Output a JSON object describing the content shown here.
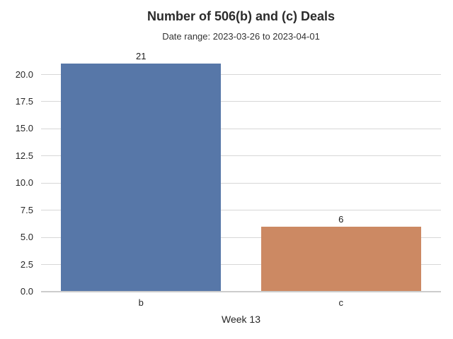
{
  "chart_data": {
    "type": "bar",
    "title": "Number of 506(b) and (c) Deals",
    "subtitle": "Date range: 2023-03-26 to 2023-04-01",
    "xlabel": "Week 13",
    "ylabel": "",
    "categories": [
      "b",
      "c"
    ],
    "values": [
      21,
      6
    ],
    "value_labels": [
      "21",
      "6"
    ],
    "series": [
      {
        "name": "deals",
        "values": [
          21,
          6
        ]
      }
    ],
    "bar_colors": [
      "#5777a8",
      "#cc8963"
    ],
    "yticks": [
      0.0,
      2.5,
      5.0,
      7.5,
      10.0,
      12.5,
      15.0,
      17.5,
      20.0
    ],
    "ytick_labels": [
      "0.0",
      "2.5",
      "5.0",
      "7.5",
      "10.0",
      "12.5",
      "15.0",
      "17.5",
      "20.0"
    ],
    "ylim": [
      0,
      22.05
    ],
    "grid": true,
    "legend": "none",
    "colors": {
      "gridline": "#d7d7d7",
      "axis_line": "#cccccc",
      "text": "#262626",
      "background": "#ffffff"
    }
  }
}
